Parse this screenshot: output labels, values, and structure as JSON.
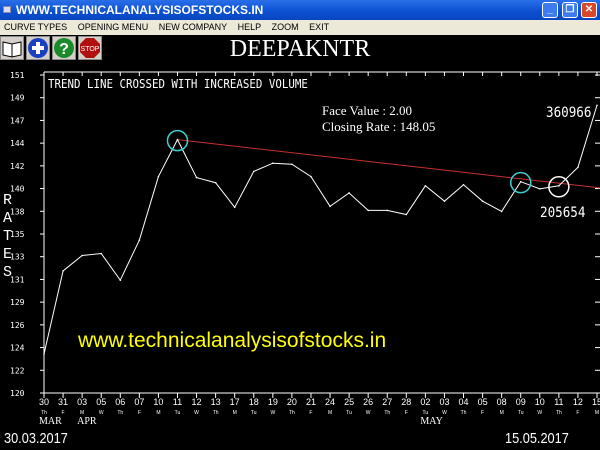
{
  "window": {
    "title": "WWW.TECHNICALANALYSISOFSTOCKS.IN"
  },
  "menu": [
    "CURVE TYPES",
    "OPENING MENU",
    "NEW COMPANY",
    "HELP",
    "ZOOM",
    "EXIT"
  ],
  "toolbar": {
    "icons": [
      "book-icon",
      "plus-icon",
      "help-icon",
      "stop-icon"
    ],
    "stop_label": "STOP"
  },
  "company": "DEEPAKNTR",
  "footer": {
    "start_date": "30.03.2017",
    "end_date": "15.05.2017"
  },
  "watermark": "www.technicalanalysisofstocks.in",
  "colors": {
    "line": "#ffffff",
    "trend": "#c83030",
    "circle_cyan": "#40d0d0",
    "circle_white": "#ffffff",
    "watermark": "#ffff00"
  },
  "chart_data": {
    "type": "line",
    "title": "TREND LINE CROSSED WITH INCREASED VOLUME",
    "ylabel": "RATES",
    "ylim": [
      120,
      151
    ],
    "yticks": [
      "151",
      "149",
      "147",
      "144",
      "142",
      "140",
      "138",
      "135",
      "133",
      "131",
      "129",
      "126",
      "124",
      "122",
      "120"
    ],
    "info": {
      "face_value": "Face Value    : 2.00",
      "closing_rate": "Closing Rate : 148.05"
    },
    "x": [
      "30",
      "31",
      "03",
      "05",
      "06",
      "07",
      "10",
      "11",
      "12",
      "13",
      "17",
      "18",
      "19",
      "20",
      "21",
      "24",
      "25",
      "26",
      "27",
      "28",
      "02",
      "03",
      "04",
      "05",
      "08",
      "09",
      "10",
      "11",
      "12",
      "15"
    ],
    "weekdays": [
      "Th",
      "F",
      "M",
      "W",
      "Th",
      "F",
      "M",
      "Tu",
      "W",
      "Th",
      "M",
      "Tu",
      "W",
      "Th",
      "F",
      "M",
      "Tu",
      "W",
      "Th",
      "F",
      "Tu",
      "W",
      "Th",
      "F",
      "M",
      "Tu",
      "W",
      "Th",
      "F",
      "M"
    ],
    "months": [
      {
        "label": "MAR",
        "index": 0
      },
      {
        "label": "APR",
        "index": 2
      },
      {
        "label": "MAY",
        "index": 20
      }
    ],
    "values": [
      123.8,
      131.9,
      133.4,
      133.6,
      131.0,
      134.9,
      141.1,
      144.7,
      141.0,
      140.5,
      138.1,
      141.6,
      142.4,
      142.3,
      141.1,
      138.2,
      139.5,
      137.8,
      137.8,
      137.4,
      140.2,
      138.7,
      140.3,
      138.7,
      137.7,
      140.6,
      139.9,
      140.2,
      142.0,
      148.05
    ],
    "trend_line": {
      "from_index": 7,
      "from_value": 144.7,
      "to_index": 29,
      "to_value": 140.0
    },
    "highlights": [
      {
        "index": 7,
        "color": "cyan"
      },
      {
        "index": 25,
        "color": "cyan"
      },
      {
        "index": 27,
        "color": "white"
      }
    ],
    "volume_labels": [
      {
        "index": 29,
        "label": "360966"
      },
      {
        "index": 27,
        "label": "205654"
      }
    ]
  }
}
